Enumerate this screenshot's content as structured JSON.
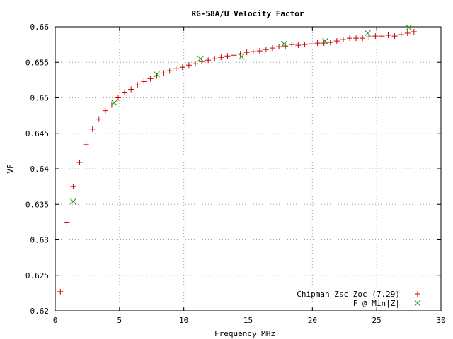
{
  "chart_data": {
    "type": "scatter",
    "title": "RG-58A/U Velocity Factor",
    "xlabel": "Frequency MHz",
    "ylabel": "VF",
    "xlim": [
      0,
      30
    ],
    "ylim": [
      0.62,
      0.66
    ],
    "xticks": [
      0,
      5,
      10,
      15,
      20,
      25,
      30
    ],
    "xtick_labels": [
      "0",
      "5",
      "10",
      "15",
      "20",
      "25",
      "30"
    ],
    "yticks": [
      0.62,
      0.625,
      0.63,
      0.635,
      0.64,
      0.645,
      0.65,
      0.655,
      0.66
    ],
    "ytick_labels": [
      "0.62",
      "0.625",
      "0.63",
      "0.635",
      "0.64",
      "0.645",
      "0.65",
      "0.655",
      "0.66"
    ],
    "grid": true,
    "legend_position": "bottom-right",
    "series": [
      {
        "name": "Chipman Zsc Zoc (7.29)",
        "marker": "plus",
        "color": "#cc0000",
        "points": [
          [
            0.4,
            0.6227
          ],
          [
            0.9,
            0.6324
          ],
          [
            1.4,
            0.6375
          ],
          [
            1.9,
            0.6409
          ],
          [
            2.4,
            0.6434
          ],
          [
            2.9,
            0.6456
          ],
          [
            3.4,
            0.647
          ],
          [
            3.9,
            0.6482
          ],
          [
            4.4,
            0.649
          ],
          [
            4.9,
            0.65
          ],
          [
            5.4,
            0.6508
          ],
          [
            5.9,
            0.6512
          ],
          [
            6.4,
            0.6518
          ],
          [
            6.9,
            0.6523
          ],
          [
            7.4,
            0.6527
          ],
          [
            7.9,
            0.6531
          ],
          [
            8.4,
            0.6535
          ],
          [
            8.9,
            0.6538
          ],
          [
            9.4,
            0.6541
          ],
          [
            9.9,
            0.6543
          ],
          [
            10.4,
            0.6546
          ],
          [
            10.9,
            0.6548
          ],
          [
            11.4,
            0.6551
          ],
          [
            11.9,
            0.6553
          ],
          [
            12.4,
            0.6555
          ],
          [
            12.9,
            0.6557
          ],
          [
            13.4,
            0.6559
          ],
          [
            13.9,
            0.656
          ],
          [
            14.4,
            0.6562
          ],
          [
            14.9,
            0.6564
          ],
          [
            15.4,
            0.6565
          ],
          [
            15.9,
            0.6566
          ],
          [
            16.4,
            0.6568
          ],
          [
            16.9,
            0.657
          ],
          [
            17.4,
            0.6572
          ],
          [
            17.9,
            0.6573
          ],
          [
            18.4,
            0.6575
          ],
          [
            18.9,
            0.6574
          ],
          [
            19.4,
            0.6575
          ],
          [
            19.9,
            0.6576
          ],
          [
            20.4,
            0.6577
          ],
          [
            20.9,
            0.6577
          ],
          [
            21.4,
            0.6578
          ],
          [
            21.9,
            0.658
          ],
          [
            22.4,
            0.6582
          ],
          [
            22.9,
            0.6584
          ],
          [
            23.4,
            0.6584
          ],
          [
            23.9,
            0.6584
          ],
          [
            24.4,
            0.6586
          ],
          [
            24.9,
            0.6587
          ],
          [
            25.4,
            0.6587
          ],
          [
            25.9,
            0.6588
          ],
          [
            26.4,
            0.6587
          ],
          [
            26.9,
            0.6589
          ],
          [
            27.4,
            0.6591
          ],
          [
            27.9,
            0.6593
          ]
        ]
      },
      {
        "name": "F @ Min|Z|",
        "marker": "cross",
        "color": "#00a000",
        "points": [
          [
            1.4,
            0.6354
          ],
          [
            4.6,
            0.6493
          ],
          [
            7.9,
            0.6533
          ],
          [
            11.3,
            0.6555
          ],
          [
            14.5,
            0.6558
          ],
          [
            17.8,
            0.6576
          ],
          [
            21.0,
            0.658
          ],
          [
            24.3,
            0.6591
          ],
          [
            27.5,
            0.6599
          ]
        ]
      }
    ]
  }
}
